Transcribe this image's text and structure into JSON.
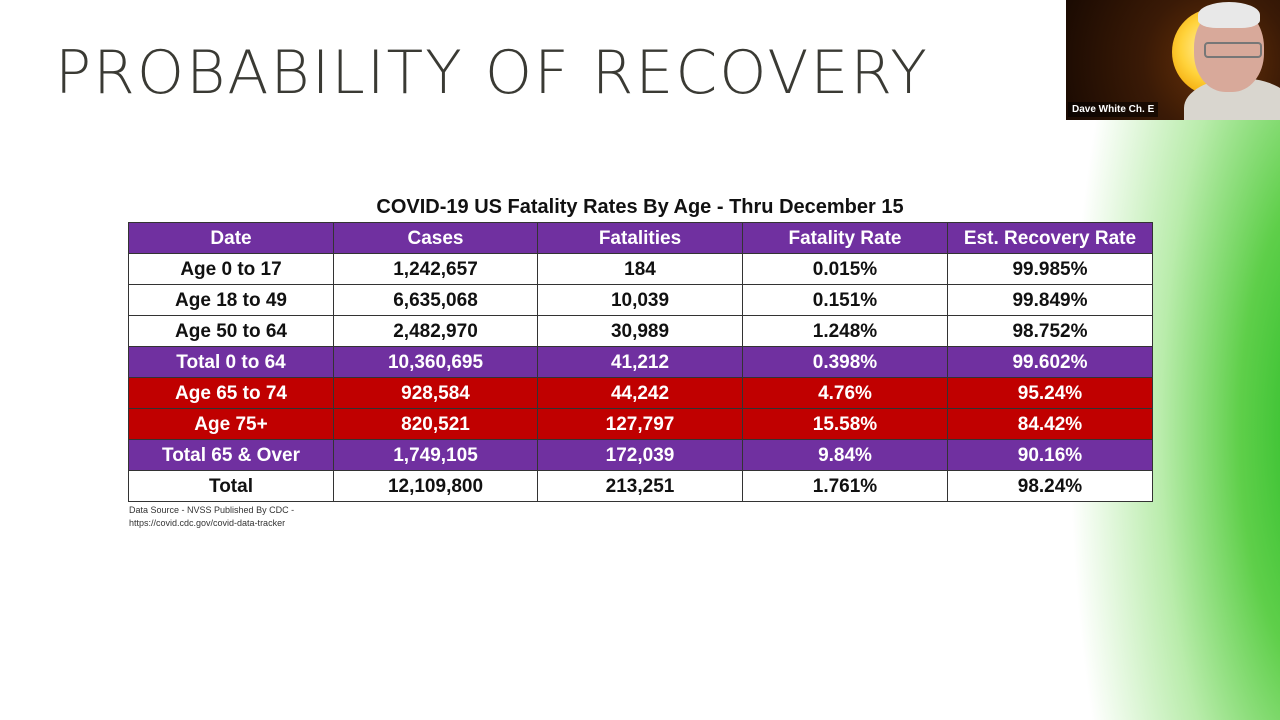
{
  "slide": {
    "title": "PROBABILITY OF RECOVERY",
    "table_caption": "COVID-19 US Fatality Rates By Age - Thru December 15",
    "source_line1": "Data Source - NVSS Published By CDC -",
    "source_line2": "https://covid.cdc.gov/covid-data-tracker"
  },
  "table": {
    "headers": [
      "Date",
      "Cases",
      "Fatalities",
      "Fatality Rate",
      "Est. Recovery Rate"
    ],
    "rows": [
      {
        "style": "white",
        "cells": [
          "Age 0 to 17",
          "1,242,657",
          "184",
          "0.015%",
          "99.985%"
        ]
      },
      {
        "style": "white",
        "cells": [
          "Age 18 to 49",
          "6,635,068",
          "10,039",
          "0.151%",
          "99.849%"
        ]
      },
      {
        "style": "white",
        "cells": [
          "Age 50 to 64",
          "2,482,970",
          "30,989",
          "1.248%",
          "98.752%"
        ]
      },
      {
        "style": "purple",
        "cells": [
          "Total 0 to 64",
          "10,360,695",
          "41,212",
          "0.398%",
          "99.602%"
        ]
      },
      {
        "style": "red",
        "cells": [
          "Age 65 to 74",
          "928,584",
          "44,242",
          "4.76%",
          "95.24%"
        ]
      },
      {
        "style": "red",
        "cells": [
          "Age 75+",
          "820,521",
          "127,797",
          "15.58%",
          "84.42%"
        ]
      },
      {
        "style": "purple",
        "cells": [
          "Total 65 & Over",
          "1,749,105",
          "172,039",
          "9.84%",
          "90.16%"
        ]
      },
      {
        "style": "white",
        "cells": [
          "Total",
          "12,109,800",
          "213,251",
          "1.761%",
          "98.24%"
        ]
      }
    ],
    "colors": {
      "header": "#7030a0",
      "purple_row": "#7030a0",
      "red_row": "#c00000",
      "white_row": "#ffffff"
    }
  },
  "video": {
    "participant_name": "Dave White Ch. E"
  },
  "theme": {
    "accent_green": "#22b922",
    "title_color": "#3a3a34"
  }
}
